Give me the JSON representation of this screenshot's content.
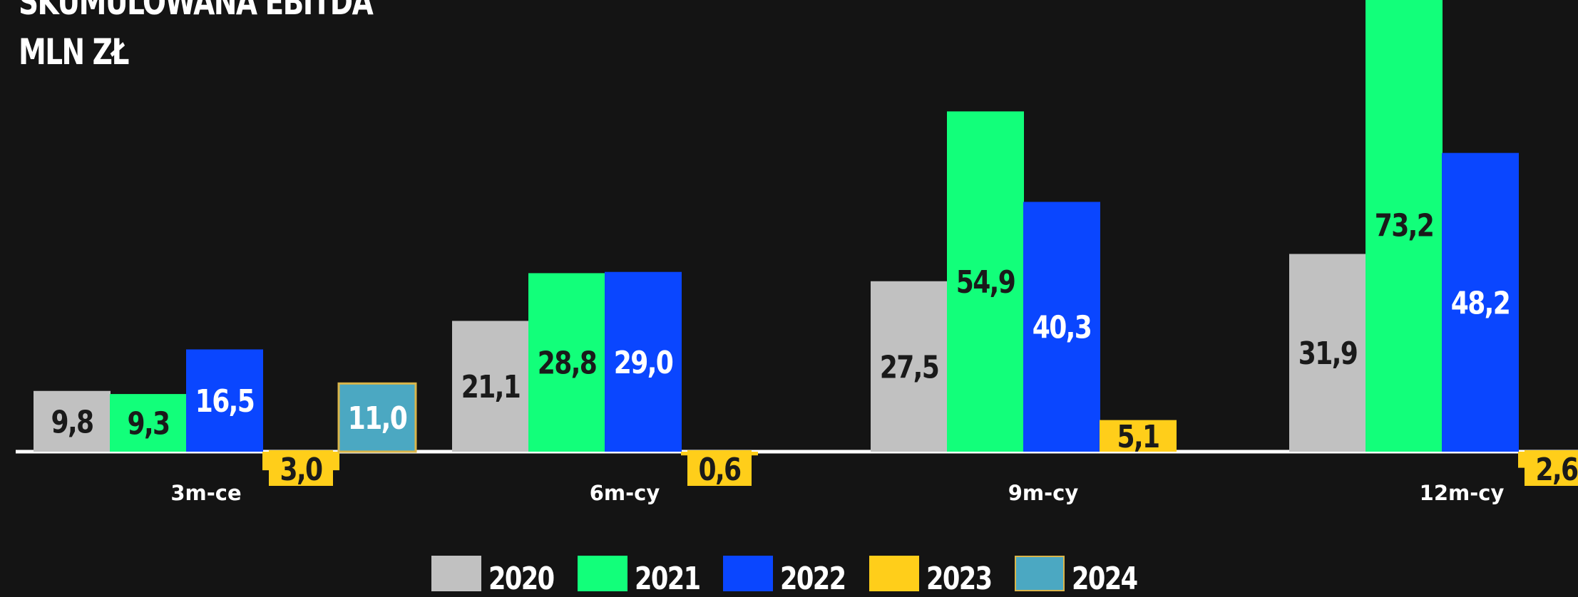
{
  "header": {
    "title_line1": "SKUMULOWANA EBITDA",
    "title_line2": "MLN ZŁ"
  },
  "colors": {
    "background": "#141414",
    "axis": "#ffffff",
    "2020": "#c1c1c1",
    "2021": "#12ff7a",
    "2022": "#0a46ff",
    "2023": "#ffce1a",
    "2024": "#4ba8c2",
    "2024_border": "#d9b54a"
  },
  "chart_data": {
    "type": "bar",
    "categories": [
      "3m-ce",
      "6m-cy",
      "9m-cy",
      "12m-cy"
    ],
    "series": [
      {
        "name": "2020",
        "values": [
          9.8,
          21.1,
          27.5,
          31.9
        ],
        "labels": [
          "9,8",
          "21,1",
          "27,5",
          "31,9"
        ]
      },
      {
        "name": "2021",
        "values": [
          9.3,
          28.8,
          54.9,
          73.2
        ],
        "labels": [
          "9,3",
          "28,8",
          "54,9",
          "73,2"
        ]
      },
      {
        "name": "2022",
        "values": [
          16.5,
          29.0,
          40.3,
          48.2
        ],
        "labels": [
          "16,5",
          "29,0",
          "40,3",
          "48,2"
        ]
      },
      {
        "name": "2023",
        "values": [
          -3.0,
          -0.6,
          5.1,
          -2.6
        ],
        "labels": [
          "3,0",
          "0,6",
          "5,1",
          "2,6"
        ]
      },
      {
        "name": "2024",
        "values": [
          11.0,
          null,
          null,
          null
        ],
        "labels": [
          "11,0",
          null,
          null,
          null
        ]
      }
    ],
    "title": "SKUMULOWANA EBITDA MLN ZŁ",
    "xlabel": "",
    "ylabel": "",
    "grid": false,
    "legend_position": "bottom"
  }
}
